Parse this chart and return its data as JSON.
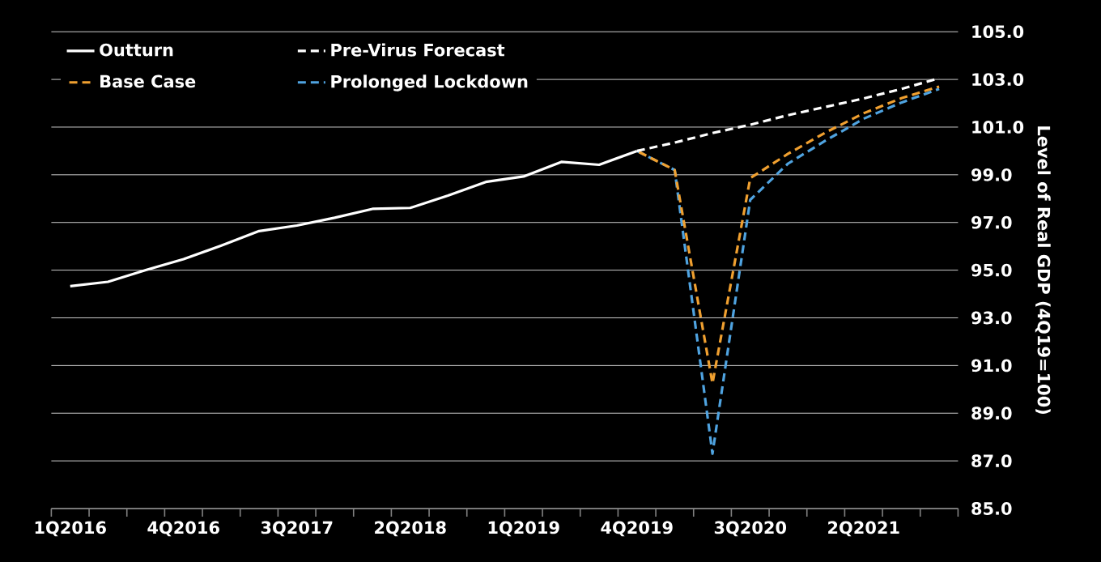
{
  "chart_data": {
    "type": "line",
    "ylabel": "Level of Real GDP (4Q19=100)",
    "categories": [
      "1Q2016",
      null,
      null,
      "4Q2016",
      null,
      null,
      "3Q2017",
      null,
      null,
      "2Q2018",
      null,
      null,
      "1Q2019",
      null,
      null,
      "4Q2019",
      null,
      null,
      "3Q2020",
      null,
      null,
      "2Q2021",
      null,
      null
    ],
    "series": [
      {
        "name": "Outturn",
        "color": "#ffffff",
        "line_style": "solid",
        "values": [
          94.33,
          94.51,
          95.0,
          95.46,
          96.03,
          96.64,
          96.87,
          97.2,
          97.57,
          97.61,
          98.13,
          98.7,
          98.93,
          99.54,
          99.42,
          100.0,
          null,
          null,
          null,
          null,
          null,
          null,
          null,
          null
        ]
      },
      {
        "name": "Pre-Virus Forecast",
        "color": "#ffffff",
        "line_style": "dashed",
        "values": [
          null,
          null,
          null,
          null,
          null,
          null,
          null,
          null,
          null,
          null,
          null,
          null,
          null,
          null,
          null,
          100.0,
          100.35,
          100.75,
          101.1,
          101.5,
          101.85,
          102.2,
          102.6,
          103.05
        ]
      },
      {
        "name": "Base Case",
        "color": "#f0a030",
        "line_style": "dashed",
        "values": [
          null,
          null,
          null,
          null,
          null,
          null,
          null,
          null,
          null,
          null,
          null,
          null,
          null,
          null,
          null,
          100.0,
          99.2,
          90.25,
          98.86,
          99.88,
          100.78,
          101.58,
          102.21,
          102.7
        ]
      },
      {
        "name": "Prolonged Lockdown",
        "color": "#4fa3e0",
        "line_style": "dashed",
        "values": [
          null,
          null,
          null,
          null,
          null,
          null,
          null,
          null,
          null,
          null,
          null,
          null,
          null,
          null,
          null,
          100.0,
          99.2,
          87.3,
          97.95,
          99.47,
          100.44,
          101.35,
          102.03,
          102.6
        ]
      }
    ],
    "ylim": [
      85,
      105
    ],
    "yticks": [
      {
        "value": 85,
        "label": "85.0"
      },
      {
        "value": 87,
        "label": "87.0"
      },
      {
        "value": 89,
        "label": "89.0"
      },
      {
        "value": 91,
        "label": "91.0"
      },
      {
        "value": 93,
        "label": "93.0"
      },
      {
        "value": 95,
        "label": "95.0"
      },
      {
        "value": 97,
        "label": "97.0"
      },
      {
        "value": 99,
        "label": "99.0"
      },
      {
        "value": 101,
        "label": "101.0"
      },
      {
        "value": 103,
        "label": "103.0"
      },
      {
        "value": 105,
        "label": "105.0"
      }
    ],
    "grid": "y",
    "legend": "top left",
    "marker": "none"
  }
}
